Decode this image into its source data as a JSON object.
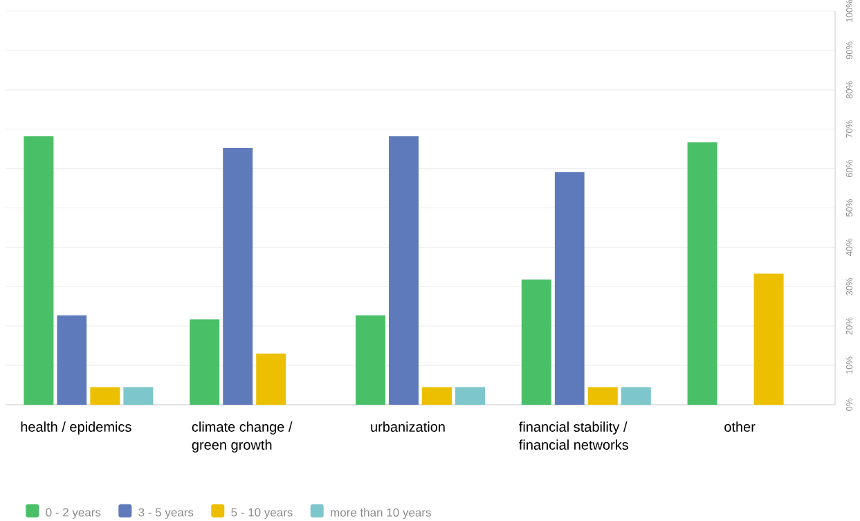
{
  "chart_data": {
    "type": "bar",
    "categories": [
      "health / epidemics",
      "climate change / green growth",
      "urbanization",
      "financial stability / financial networks",
      "other"
    ],
    "series": [
      {
        "name": "0 - 2 years",
        "color": "#49bf67",
        "values": [
          68.2,
          21.7,
          22.7,
          31.8,
          66.7
        ]
      },
      {
        "name": "3 - 5 years",
        "color": "#5e7abb",
        "values": [
          22.7,
          65.2,
          68.2,
          59.1,
          null
        ]
      },
      {
        "name": "5 - 10 years",
        "color": "#ecc000",
        "values": [
          4.5,
          13.0,
          4.5,
          4.5,
          33.3
        ]
      },
      {
        "name": "more than 10 years",
        "color": "#7dc6cc",
        "values": [
          4.5,
          null,
          4.5,
          4.5,
          null
        ]
      }
    ],
    "ylim": [
      0,
      100
    ],
    "yticks": [
      {
        "value": 0,
        "label": "0%"
      },
      {
        "value": 10,
        "label": "10%"
      },
      {
        "value": 20,
        "label": "20%"
      },
      {
        "value": 30,
        "label": "30%"
      },
      {
        "value": 40,
        "label": "40%"
      },
      {
        "value": 50,
        "label": "50%"
      },
      {
        "value": 60,
        "label": "60%"
      },
      {
        "value": 70,
        "label": "70%"
      },
      {
        "value": 80,
        "label": "80%"
      },
      {
        "value": 90,
        "label": "90%"
      },
      {
        "value": 100,
        "label": "100%"
      }
    ],
    "grid": "y",
    "legend": "bottom left"
  }
}
